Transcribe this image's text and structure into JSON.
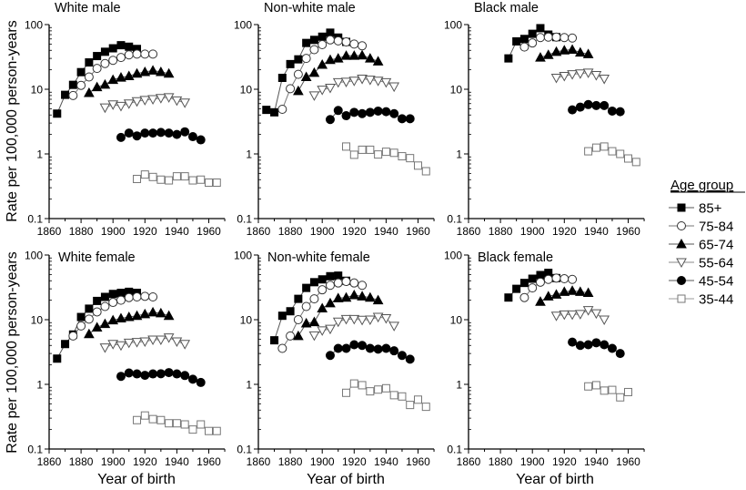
{
  "chart_data": {
    "type": "scatter",
    "title": "",
    "xlabel": "Year of birth",
    "ylabel": "Rate per 100,000 person-years",
    "yscale": "log",
    "xlim": [
      1860,
      1970
    ],
    "ylim": [
      0.1,
      100
    ],
    "xticks": [
      "1860",
      "1880",
      "1900",
      "1920",
      "1940",
      "1960"
    ],
    "yticks": [
      "0.1",
      "1",
      "10",
      "100"
    ],
    "legend": {
      "title": "Age group",
      "placement": "right",
      "entries": [
        {
          "label": "85+",
          "marker": "square-filled"
        },
        {
          "label": "75-84",
          "marker": "circle-open"
        },
        {
          "label": "65-74",
          "marker": "triangle-up-filled"
        },
        {
          "label": "55-64",
          "marker": "triangle-down-open"
        },
        {
          "label": "45-54",
          "marker": "circle-filled"
        },
        {
          "label": "35-44",
          "marker": "square-open"
        }
      ]
    },
    "panels": [
      {
        "title": "White male",
        "series": [
          {
            "name": "85+",
            "x": [
              1865,
              1870,
              1875,
              1880,
              1885,
              1890,
              1895,
              1900,
              1905,
              1910,
              1915
            ],
            "values": [
              4.2,
              8.2,
              11.7,
              18.4,
              26,
              32.6,
              38,
              43,
              48,
              45.5,
              42
            ]
          },
          {
            "name": "75-84",
            "x": [
              1875,
              1880,
              1885,
              1890,
              1895,
              1900,
              1905,
              1910,
              1915,
              1920,
              1925
            ],
            "values": [
              8.0,
              11.5,
              15.5,
              21,
              25,
              28,
              31,
              34,
              35,
              35,
              35
            ]
          },
          {
            "name": "65-74",
            "x": [
              1885,
              1890,
              1895,
              1900,
              1905,
              1910,
              1915,
              1920,
              1925,
              1930,
              1935
            ],
            "values": [
              8.8,
              10.8,
              11.8,
              14,
              15.2,
              16,
              17.5,
              18.5,
              19.5,
              18.5,
              17.5
            ]
          },
          {
            "name": "55-64",
            "x": [
              1895,
              1900,
              1905,
              1910,
              1915,
              1920,
              1925,
              1930,
              1935,
              1940,
              1945
            ],
            "values": [
              5.2,
              5.8,
              5.5,
              6.0,
              6.5,
              6.8,
              7.0,
              7.3,
              7.5,
              6.7,
              6.2
            ]
          },
          {
            "name": "45-54",
            "x": [
              1905,
              1910,
              1915,
              1920,
              1925,
              1930,
              1935,
              1940,
              1945,
              1950,
              1955
            ],
            "values": [
              1.8,
              2.1,
              1.9,
              2.1,
              2.1,
              2.15,
              2.1,
              2.0,
              2.2,
              1.85,
              1.65
            ]
          },
          {
            "name": "35-44",
            "x": [
              1915,
              1920,
              1925,
              1930,
              1935,
              1940,
              1945,
              1950,
              1955,
              1960,
              1965
            ],
            "values": [
              0.41,
              0.48,
              0.44,
              0.4,
              0.39,
              0.45,
              0.45,
              0.39,
              0.4,
              0.36,
              0.36
            ]
          }
        ]
      },
      {
        "title": "Non-white male",
        "series": [
          {
            "name": "85+",
            "x": [
              1865,
              1870,
              1875,
              1880,
              1885,
              1890,
              1895,
              1900,
              1905,
              1910,
              1915
            ],
            "values": [
              4.8,
              4.4,
              15,
              24.5,
              29,
              52,
              58,
              65,
              75,
              63,
              54
            ]
          },
          {
            "name": "75-84",
            "x": [
              1875,
              1880,
              1885,
              1890,
              1895,
              1900,
              1905,
              1910,
              1915,
              1920,
              1925
            ],
            "values": [
              4.9,
              10.2,
              17,
              30,
              41,
              49,
              58,
              56,
              54,
              50,
              47
            ]
          },
          {
            "name": "65-74",
            "x": [
              1885,
              1890,
              1895,
              1900,
              1905,
              1910,
              1915,
              1920,
              1925,
              1930,
              1935
            ],
            "values": [
              9.4,
              15.5,
              18,
              24,
              28.5,
              30,
              33,
              33,
              33.5,
              30,
              27
            ]
          },
          {
            "name": "55-64",
            "x": [
              1895,
              1900,
              1905,
              1910,
              1915,
              1920,
              1925,
              1930,
              1935,
              1940,
              1945
            ],
            "values": [
              8.0,
              9.8,
              10.5,
              12.8,
              13,
              13.5,
              14.5,
              14,
              13.5,
              12.8,
              11
            ]
          },
          {
            "name": "45-54",
            "x": [
              1905,
              1910,
              1915,
              1920,
              1925,
              1930,
              1935,
              1940,
              1945,
              1950,
              1955
            ],
            "values": [
              3.4,
              4.7,
              3.9,
              4.4,
              4.2,
              4.4,
              4.6,
              4.5,
              4.2,
              3.5,
              3.5
            ]
          },
          {
            "name": "35-44",
            "x": [
              1915,
              1920,
              1925,
              1930,
              1935,
              1940,
              1945,
              1950,
              1955,
              1960,
              1965
            ],
            "values": [
              1.3,
              0.97,
              1.16,
              1.16,
              0.98,
              1.08,
              1.04,
              0.92,
              0.86,
              0.66,
              0.54
            ]
          }
        ]
      },
      {
        "title": "Black male",
        "series": [
          {
            "name": "85+",
            "x": [
              1885,
              1890,
              1895,
              1900,
              1905,
              1910,
              1915
            ],
            "values": [
              30,
              55,
              60,
              72,
              88,
              70,
              64
            ]
          },
          {
            "name": "75-84",
            "x": [
              1895,
              1900,
              1905,
              1910,
              1915,
              1920,
              1925
            ],
            "values": [
              45,
              52,
              63,
              64,
              64,
              63,
              62
            ]
          },
          {
            "name": "65-74",
            "x": [
              1905,
              1910,
              1915,
              1920,
              1925,
              1930,
              1935
            ],
            "values": [
              31,
              34,
              38,
              40,
              41,
              37,
              35
            ]
          },
          {
            "name": "55-64",
            "x": [
              1915,
              1920,
              1925,
              1930,
              1935,
              1940,
              1945
            ],
            "values": [
              15,
              16,
              17,
              17.5,
              18,
              16.5,
              14.5
            ]
          },
          {
            "name": "45-54",
            "x": [
              1925,
              1930,
              1935,
              1940,
              1945,
              1950,
              1955
            ],
            "values": [
              4.8,
              5.3,
              5.8,
              5.6,
              5.6,
              4.6,
              4.5
            ]
          },
          {
            "name": "35-44",
            "x": [
              1935,
              1940,
              1945,
              1950,
              1955,
              1960,
              1965
            ],
            "values": [
              1.1,
              1.25,
              1.3,
              1.1,
              1.0,
              0.85,
              0.75
            ]
          }
        ]
      },
      {
        "title": "White female",
        "series": [
          {
            "name": "85+",
            "x": [
              1865,
              1870,
              1875,
              1880,
              1885,
              1890,
              1895,
              1900,
              1905,
              1910,
              1915
            ],
            "values": [
              2.5,
              4.2,
              5.9,
              11,
              14.8,
              19.5,
              22.5,
              25,
              26,
              27,
              26
            ]
          },
          {
            "name": "75-84",
            "x": [
              1875,
              1880,
              1885,
              1890,
              1895,
              1900,
              1905,
              1910,
              1915,
              1920,
              1925
            ],
            "values": [
              5.6,
              8.0,
              10.2,
              13.2,
              16,
              18.5,
              20,
              22,
              22.5,
              23,
              22.5
            ]
          },
          {
            "name": "65-74",
            "x": [
              1885,
              1890,
              1895,
              1900,
              1905,
              1910,
              1915,
              1920,
              1925,
              1930,
              1935
            ],
            "values": [
              6.0,
              7.6,
              8.6,
              9.8,
              10.5,
              11,
              11.5,
              12.2,
              13,
              12.6,
              11.5
            ]
          },
          {
            "name": "55-64",
            "x": [
              1895,
              1900,
              1905,
              1910,
              1915,
              1920,
              1925,
              1930,
              1935,
              1940,
              1945
            ],
            "values": [
              3.7,
              4.2,
              4.0,
              4.4,
              4.5,
              4.6,
              4.9,
              4.9,
              5.3,
              4.6,
              4.2
            ]
          },
          {
            "name": "45-54",
            "x": [
              1905,
              1910,
              1915,
              1920,
              1925,
              1930,
              1935,
              1940,
              1945,
              1950,
              1955
            ],
            "values": [
              1.33,
              1.5,
              1.45,
              1.38,
              1.45,
              1.46,
              1.52,
              1.45,
              1.37,
              1.2,
              1.07
            ]
          },
          {
            "name": "35-44",
            "x": [
              1915,
              1920,
              1925,
              1930,
              1935,
              1940,
              1945,
              1950,
              1955,
              1960,
              1965
            ],
            "values": [
              0.28,
              0.33,
              0.29,
              0.28,
              0.25,
              0.25,
              0.24,
              0.2,
              0.24,
              0.19,
              0.19
            ]
          }
        ]
      },
      {
        "title": "Non-white female",
        "series": [
          {
            "name": "85+",
            "x": [
              1870,
              1875,
              1880,
              1885,
              1890,
              1895,
              1900,
              1905,
              1910,
              1915
            ],
            "values": [
              4.8,
              11.5,
              13.5,
              21,
              31,
              38,
              42,
              47,
              48,
              40
            ]
          },
          {
            "name": "75-84",
            "x": [
              1875,
              1880,
              1885,
              1890,
              1895,
              1900,
              1905,
              1910,
              1915,
              1920,
              1925
            ],
            "values": [
              3.6,
              5.6,
              10,
              16,
              21,
              29,
              34,
              37,
              39,
              37,
              34
            ]
          },
          {
            "name": "65-74",
            "x": [
              1885,
              1890,
              1895,
              1900,
              1905,
              1910,
              1915,
              1920,
              1925,
              1930,
              1935
            ],
            "values": [
              5.6,
              8.8,
              9.2,
              15,
              18,
              21.5,
              22,
              24,
              23,
              22,
              20
            ]
          },
          {
            "name": "55-64",
            "x": [
              1895,
              1900,
              1905,
              1910,
              1915,
              1920,
              1925,
              1930,
              1935,
              1940,
              1945
            ],
            "values": [
              5.7,
              6.8,
              7.2,
              9.3,
              10.2,
              10.2,
              9.9,
              10,
              11,
              10.5,
              8
            ]
          },
          {
            "name": "45-54",
            "x": [
              1905,
              1910,
              1915,
              1920,
              1925,
              1930,
              1935,
              1940,
              1945,
              1950,
              1955
            ],
            "values": [
              2.8,
              3.6,
              3.6,
              4.1,
              4.0,
              3.6,
              3.5,
              3.6,
              3.3,
              2.8,
              2.45
            ]
          },
          {
            "name": "35-44",
            "x": [
              1915,
              1920,
              1925,
              1930,
              1935,
              1940,
              1945,
              1950,
              1955,
              1960,
              1965
            ],
            "values": [
              0.74,
              1.03,
              0.97,
              0.78,
              0.83,
              0.87,
              0.68,
              0.65,
              0.48,
              0.58,
              0.45
            ]
          }
        ]
      },
      {
        "title": "Black female",
        "series": [
          {
            "name": "85+",
            "x": [
              1885,
              1890,
              1895,
              1900,
              1905,
              1910,
              1915
            ],
            "values": [
              22,
              30,
              37,
              43,
              49,
              53,
              44
            ]
          },
          {
            "name": "75-84",
            "x": [
              1895,
              1900,
              1905,
              1910,
              1915,
              1920,
              1925
            ],
            "values": [
              22,
              31,
              38,
              42,
              44,
              43,
              42
            ]
          },
          {
            "name": "65-74",
            "x": [
              1905,
              1910,
              1915,
              1920,
              1925,
              1930,
              1935
            ],
            "values": [
              19,
              23,
              24.5,
              27,
              28,
              27,
              26
            ]
          },
          {
            "name": "55-64",
            "x": [
              1915,
              1920,
              1925,
              1930,
              1935,
              1940,
              1945
            ],
            "values": [
              11.5,
              12,
              12,
              12.2,
              14,
              12.5,
              10
            ]
          },
          {
            "name": "45-54",
            "x": [
              1925,
              1930,
              1935,
              1940,
              1945,
              1950,
              1955
            ],
            "values": [
              4.5,
              4.0,
              4.1,
              4.4,
              4.1,
              3.6,
              3.0
            ]
          },
          {
            "name": "35-44",
            "x": [
              1935,
              1940,
              1945,
              1950,
              1955,
              1960
            ],
            "values": [
              0.93,
              0.97,
              0.8,
              0.82,
              0.63,
              0.76
            ]
          }
        ]
      }
    ]
  }
}
